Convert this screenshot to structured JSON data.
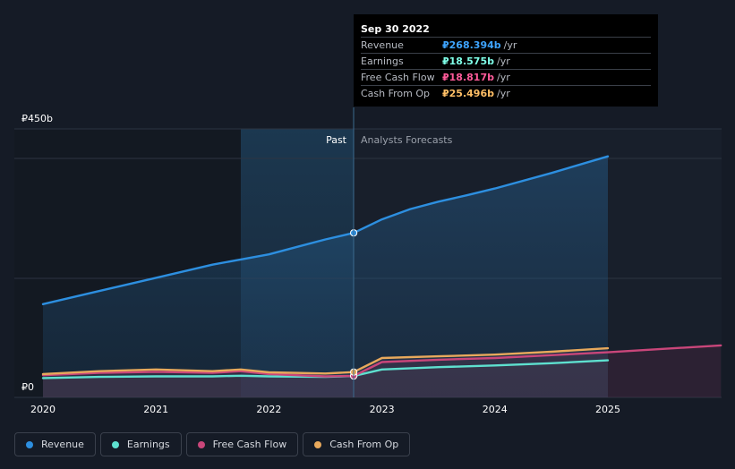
{
  "chart_data": {
    "type": "line",
    "currency_symbol": "₽",
    "y_top_label": "₽450b",
    "y_bottom_label": "₽0",
    "ylim": [
      0,
      450
    ],
    "xlim": [
      2020,
      2025
    ],
    "x_ticks": [
      "2020",
      "2021",
      "2022",
      "2023",
      "2024",
      "2025"
    ],
    "past_label": "Past",
    "forecast_label": "Analysts Forecasts",
    "past_end_x": 2022.75,
    "series": [
      {
        "name": "Revenue",
        "color": "#2d8fe0",
        "points": [
          [
            2020.0,
            144
          ],
          [
            2020.5,
            167
          ],
          [
            2021.0,
            190
          ],
          [
            2021.5,
            213
          ],
          [
            2021.75,
            222
          ],
          [
            2022.0,
            231
          ],
          [
            2022.25,
            244
          ],
          [
            2022.5,
            257
          ],
          [
            2022.75,
            268.4
          ],
          [
            2023.0,
            292
          ],
          [
            2023.25,
            310
          ],
          [
            2023.5,
            323
          ],
          [
            2023.75,
            334
          ],
          [
            2024.0,
            346
          ],
          [
            2024.5,
            373
          ],
          [
            2025.0,
            402
          ]
        ]
      },
      {
        "name": "Earnings",
        "color": "#5ee0cf",
        "points": [
          [
            2020.0,
            15
          ],
          [
            2020.5,
            17
          ],
          [
            2021.0,
            18
          ],
          [
            2021.5,
            18
          ],
          [
            2021.75,
            19
          ],
          [
            2022.0,
            18
          ],
          [
            2022.5,
            17
          ],
          [
            2022.75,
            18.6
          ],
          [
            2023.0,
            30
          ],
          [
            2023.5,
            34
          ],
          [
            2024.0,
            37
          ],
          [
            2024.5,
            41
          ],
          [
            2025.0,
            46
          ]
        ]
      },
      {
        "name": "Free Cash Flow",
        "color": "#c9467a",
        "points": [
          [
            2020.0,
            20
          ],
          [
            2020.5,
            24
          ],
          [
            2021.0,
            26
          ],
          [
            2021.5,
            24
          ],
          [
            2021.75,
            27
          ],
          [
            2022.0,
            22
          ],
          [
            2022.5,
            18
          ],
          [
            2022.75,
            18.8
          ],
          [
            2023.0,
            43
          ],
          [
            2023.5,
            47
          ],
          [
            2024.0,
            50
          ],
          [
            2024.5,
            55
          ],
          [
            2025.0,
            60
          ],
          [
            2026.0,
            72
          ]
        ]
      },
      {
        "name": "Cash From Op",
        "color": "#e8a95c",
        "points": [
          [
            2020.0,
            22
          ],
          [
            2020.5,
            27
          ],
          [
            2021.0,
            30
          ],
          [
            2021.5,
            27
          ],
          [
            2021.75,
            30
          ],
          [
            2022.0,
            25
          ],
          [
            2022.5,
            23
          ],
          [
            2022.75,
            25.5
          ],
          [
            2023.0,
            50
          ],
          [
            2023.5,
            53
          ],
          [
            2024.0,
            56
          ],
          [
            2024.5,
            61
          ],
          [
            2025.0,
            67
          ]
        ]
      }
    ],
    "tooltip": {
      "date": "Sep 30 2022",
      "unit": "/yr",
      "rows": [
        {
          "label": "Revenue",
          "value": "₽268.394b",
          "color": "#3ea4ff"
        },
        {
          "label": "Earnings",
          "value": "₽18.575b",
          "color": "#7fffe8"
        },
        {
          "label": "Free Cash Flow",
          "value": "₽18.817b",
          "color": "#ff5b9a"
        },
        {
          "label": "Cash From Op",
          "value": "₽25.496b",
          "color": "#ffbf66"
        }
      ]
    }
  },
  "legend": [
    {
      "label": "Revenue",
      "color": "#2d8fe0"
    },
    {
      "label": "Earnings",
      "color": "#5ee0cf"
    },
    {
      "label": "Free Cash Flow",
      "color": "#c9467a"
    },
    {
      "label": "Cash From Op",
      "color": "#e8a95c"
    }
  ]
}
